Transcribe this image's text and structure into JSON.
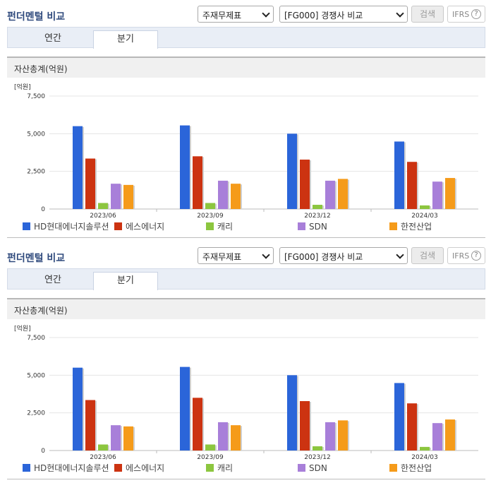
{
  "panels": [
    {
      "title": "펀더멘털 비교",
      "select_1": "주재무제표",
      "select_2": "[FG000] 경쟁사 비교",
      "search_label": "검색",
      "ifrs_label": "IFRS",
      "help_label": "?",
      "tabs": [
        "연간",
        "분기"
      ],
      "active_tab": "분기",
      "section_title": "자산총계(억원)"
    },
    {
      "title": "펀더멘털 비교",
      "select_1": "주재무제표",
      "select_2": "[FG000] 경쟁사 비교",
      "search_label": "검색",
      "ifrs_label": "IFRS",
      "help_label": "?",
      "tabs": [
        "연간",
        "분기"
      ],
      "active_tab": "분기",
      "section_title": "자산총계(억원)"
    }
  ],
  "chart_data": [
    {
      "type": "bar",
      "unit_label": "[억원]",
      "categories": [
        "2023/06",
        "2023/09",
        "2023/12",
        "2024/03"
      ],
      "ylim": [
        0,
        7500
      ],
      "yticks": [
        "0",
        "2,500",
        "5,000",
        "7,500"
      ],
      "series": [
        {
          "name": "HD현대에너지솔루션",
          "color": "#2b65d9",
          "values": [
            5500,
            5550,
            5000,
            4480
          ]
        },
        {
          "name": "에스에너지",
          "color": "#cc3311",
          "values": [
            3350,
            3500,
            3280,
            3130
          ]
        },
        {
          "name": "캐리",
          "color": "#8cc63f",
          "values": [
            400,
            400,
            280,
            240
          ]
        },
        {
          "name": "SDN",
          "color": "#a87fd9",
          "values": [
            1680,
            1880,
            1880,
            1820
          ]
        },
        {
          "name": "한전산업",
          "color": "#f59b1a",
          "values": [
            1600,
            1680,
            2000,
            2060
          ]
        }
      ]
    },
    {
      "type": "bar",
      "unit_label": "[억원]",
      "categories": [
        "2023/06",
        "2023/09",
        "2023/12",
        "2024/03"
      ],
      "ylim": [
        0,
        7500
      ],
      "yticks": [
        "0",
        "2,500",
        "5,000",
        "7,500"
      ],
      "series": [
        {
          "name": "HD현대에너지솔루션",
          "color": "#2b65d9",
          "values": [
            5500,
            5550,
            5000,
            4480
          ]
        },
        {
          "name": "에스에너지",
          "color": "#cc3311",
          "values": [
            3350,
            3500,
            3280,
            3130
          ]
        },
        {
          "name": "캐리",
          "color": "#8cc63f",
          "values": [
            400,
            400,
            280,
            240
          ]
        },
        {
          "name": "SDN",
          "color": "#a87fd9",
          "values": [
            1680,
            1880,
            1880,
            1820
          ]
        },
        {
          "name": "한전산업",
          "color": "#f59b1a",
          "values": [
            1600,
            1680,
            2000,
            2060
          ]
        }
      ]
    }
  ]
}
